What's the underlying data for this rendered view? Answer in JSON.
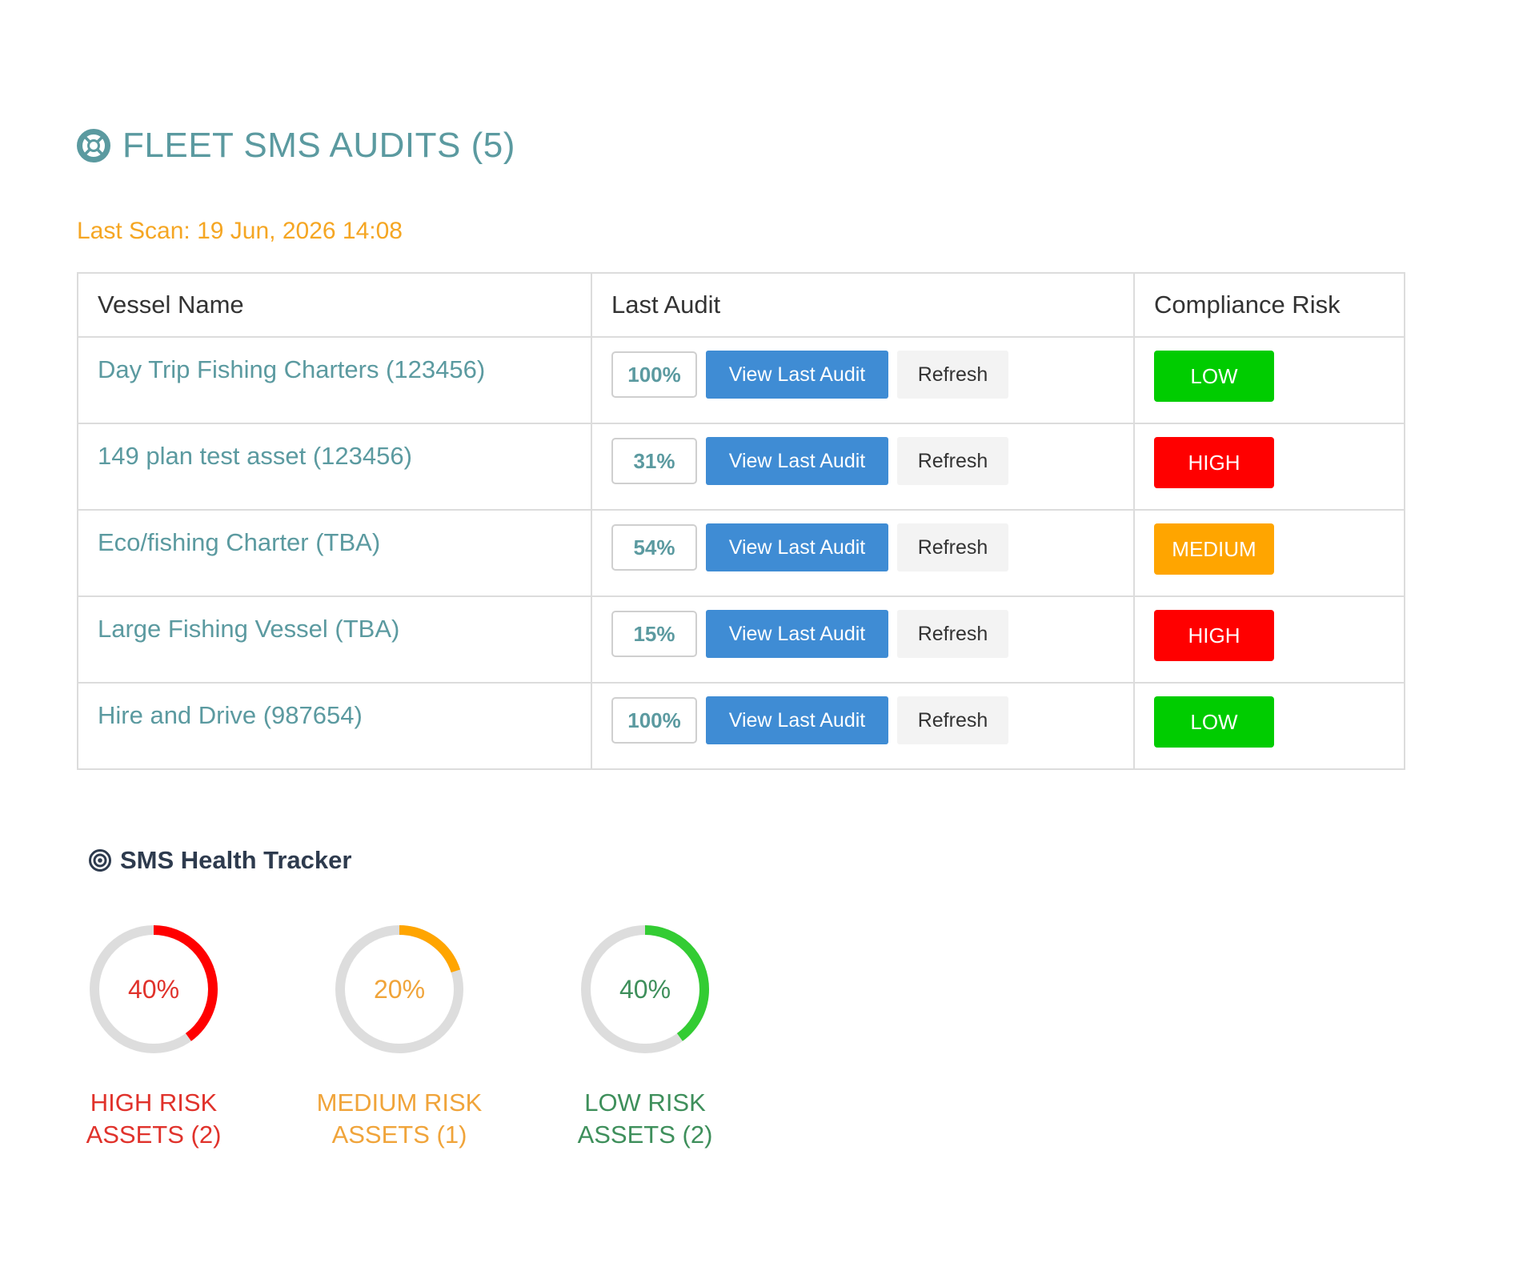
{
  "header": {
    "icon": "lifebuoy-icon",
    "title": "FLEET SMS AUDITS (5)",
    "last_scan": "Last Scan: 19 Jun, 2026 14:08"
  },
  "table": {
    "columns": [
      "Vessel Name",
      "Last Audit",
      "Compliance Risk"
    ],
    "rows": [
      {
        "vessel": "Day Trip Fishing Charters (123456)",
        "score": "100%",
        "view_label": "View Last Audit",
        "refresh_label": "Refresh",
        "risk": "LOW",
        "risk_color": "#00cc00"
      },
      {
        "vessel": "149 plan test asset (123456)",
        "score": "31%",
        "view_label": "View Last Audit",
        "refresh_label": "Refresh",
        "risk": "HIGH",
        "risk_color": "#ff0000"
      },
      {
        "vessel": "Eco/fishing Charter (TBA)",
        "score": "54%",
        "view_label": "View Last Audit",
        "refresh_label": "Refresh",
        "risk": "MEDIUM",
        "risk_color": "#ffa500"
      },
      {
        "vessel": "Large Fishing Vessel (TBA)",
        "score": "15%",
        "view_label": "View Last Audit",
        "refresh_label": "Refresh",
        "risk": "HIGH",
        "risk_color": "#ff0000"
      },
      {
        "vessel": "Hire and Drive (987654)",
        "score": "100%",
        "view_label": "View Last Audit",
        "refresh_label": "Refresh",
        "risk": "LOW",
        "risk_color": "#00cc00"
      }
    ]
  },
  "tracker": {
    "icon": "target-icon",
    "title": "SMS Health Tracker",
    "gauges": [
      {
        "value": 0.4,
        "percent_label": "40%",
        "label_line1": "HIGH RISK",
        "label_line2": "ASSETS (2)",
        "color": "#ff0000",
        "text_color": "#e0322b"
      },
      {
        "value": 0.2,
        "percent_label": "20%",
        "label_line1": "MEDIUM RISK",
        "label_line2": "ASSETS (1)",
        "color": "#ffa500",
        "text_color": "#f0a43a"
      },
      {
        "value": 0.4,
        "percent_label": "40%",
        "label_line1": "LOW RISK",
        "label_line2": "ASSETS (2)",
        "color": "#33cc33",
        "text_color": "#3e8f5b"
      }
    ]
  }
}
